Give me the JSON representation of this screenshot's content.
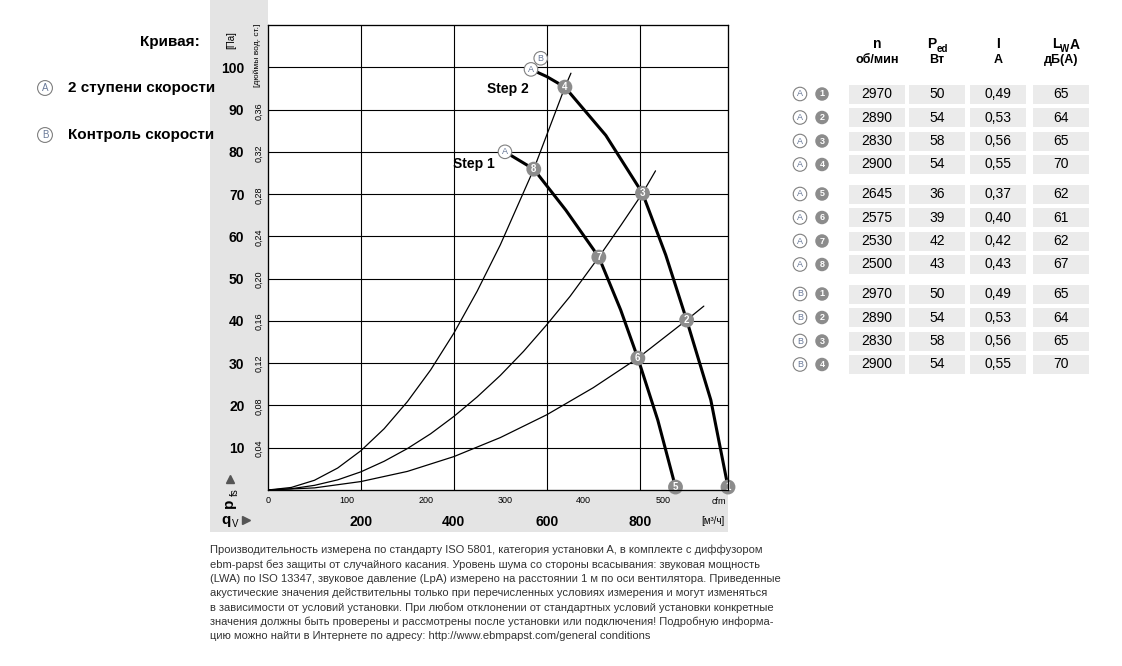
{
  "chart_data": {
    "type": "line",
    "series": [
      {
        "name": "Step 2",
        "type": "fan",
        "color": "#000000",
        "speed_marks": [
          "A",
          "B"
        ],
        "x": [
          566,
          600,
          639,
          727,
          806,
          856,
          901,
          953,
          990
        ],
        "values": [
          99.5,
          97.8,
          95.3,
          83.9,
          70.2,
          55.6,
          40.2,
          21.3,
          0.7
        ],
        "points": [
          {
            "label": "4",
            "x": 639,
            "y": 95.3
          },
          {
            "label": "3",
            "x": 806,
            "y": 70.2
          },
          {
            "label": "2",
            "x": 901,
            "y": 40.2
          },
          {
            "label": "1",
            "x": 990,
            "y": 0.7
          }
        ]
      },
      {
        "name": "Step 1",
        "type": "fan",
        "color": "#000000",
        "speed_marks": [
          "A"
        ],
        "x": [
          510,
          572,
          641,
          712,
          759,
          796,
          839,
          877
        ],
        "values": [
          80.0,
          75.9,
          66.2,
          55.1,
          42.6,
          31.2,
          16.5,
          0.7
        ],
        "points": [
          {
            "label": "8",
            "x": 572,
            "y": 75.9
          },
          {
            "label": "7",
            "x": 712,
            "y": 55.1
          },
          {
            "label": "6",
            "x": 796,
            "y": 31.2
          },
          {
            "label": "5",
            "x": 877,
            "y": 0.7
          }
        ]
      },
      {
        "type": "system",
        "color": "#000000",
        "x": [
          0,
          50,
          100,
          150,
          200,
          250,
          300,
          350,
          400,
          450,
          500,
          572,
          639,
          652
        ],
        "values": [
          0,
          0.6,
          2.3,
          5.2,
          9.3,
          14.5,
          20.9,
          28.4,
          37.1,
          47.0,
          58.0,
          75.9,
          95.3,
          98.6
        ]
      },
      {
        "type": "system",
        "color": "#000000",
        "x": [
          0,
          50,
          100,
          150,
          200,
          250,
          300,
          350,
          400,
          450,
          500,
          550,
          600,
          650,
          712,
          760,
          806,
          834
        ],
        "values": [
          0,
          0.3,
          1.1,
          2.4,
          4.3,
          6.8,
          9.8,
          13.3,
          17.4,
          22.0,
          27.1,
          32.8,
          39.1,
          45.8,
          55.1,
          62.7,
          70.2,
          75.5
        ]
      },
      {
        "type": "system",
        "color": "#000000",
        "x": [
          0,
          100,
          200,
          300,
          400,
          500,
          600,
          700,
          796,
          901,
          938
        ],
        "values": [
          0,
          0.5,
          2.0,
          4.4,
          7.9,
          12.4,
          17.8,
          24.2,
          31.2,
          40.2,
          43.5
        ]
      }
    ],
    "xlim": [
      0,
      990
    ],
    "xticks": [
      200,
      400,
      600,
      800
    ],
    "ylim": [
      0,
      110
    ],
    "yticks": [
      10,
      20,
      30,
      40,
      50,
      60,
      70,
      80,
      90,
      100
    ],
    "x2lim": [
      0,
      582.7
    ],
    "x2ticks": [
      0,
      100,
      200,
      300,
      400,
      500
    ],
    "y2lim": [
      0,
      0.4416
    ],
    "y2ticks": [
      {
        "value": 0.04,
        "label": "0,04"
      },
      {
        "value": 0.08,
        "label": "0,08"
      },
      {
        "value": 0.12,
        "label": "0,12"
      },
      {
        "value": 0.16,
        "label": "0,16"
      },
      {
        "value": 0.2,
        "label": "0,20"
      },
      {
        "value": 0.24,
        "label": "0,24"
      },
      {
        "value": 0.28,
        "label": "0,28"
      },
      {
        "value": 0.32,
        "label": "0,32"
      },
      {
        "value": 0.36,
        "label": "0,36"
      }
    ],
    "x_label": {
      "symbol": "q",
      "sub": "V",
      "unit": "[м³/ч]"
    },
    "x2_unit": "cfm",
    "y_label": {
      "symbol": "p",
      "sub": "fs",
      "unit": "[Па]"
    },
    "y2_unit": "[дюймы вод. ст.]",
    "grid": true
  },
  "curve_key": {
    "title": "Кривая:",
    "items": [
      {
        "mark": "A",
        "text": "2 ступени скорости"
      },
      {
        "mark": "B",
        "text": "Контроль скорости"
      }
    ]
  },
  "table": {
    "columns": [
      {
        "parts": [
          {
            "text": "n"
          }
        ],
        "unit": "об/мин"
      },
      {
        "parts": [
          {
            "text": "P"
          },
          {
            "text": "ed",
            "sub": true
          }
        ],
        "unit": "Вт"
      },
      {
        "parts": [
          {
            "text": "I"
          }
        ],
        "unit": "A"
      },
      {
        "parts": [
          {
            "text": "L"
          },
          {
            "text": "W",
            "sub": true
          },
          {
            "text": "A"
          }
        ],
        "unit": "дБ(A)"
      }
    ],
    "groups": [
      [
        [
          "A",
          "1",
          "2970",
          "50",
          "0,49",
          "65"
        ],
        [
          "A",
          "2",
          "2890",
          "54",
          "0,53",
          "64"
        ],
        [
          "A",
          "3",
          "2830",
          "58",
          "0,56",
          "65"
        ],
        [
          "A",
          "4",
          "2900",
          "54",
          "0,55",
          "70"
        ]
      ],
      [
        [
          "A",
          "5",
          "2645",
          "36",
          "0,37",
          "62"
        ],
        [
          "A",
          "6",
          "2575",
          "39",
          "0,40",
          "61"
        ],
        [
          "A",
          "7",
          "2530",
          "42",
          "0,42",
          "62"
        ],
        [
          "A",
          "8",
          "2500",
          "43",
          "0,43",
          "67"
        ]
      ],
      [
        [
          "B",
          "1",
          "2970",
          "50",
          "0,49",
          "65"
        ],
        [
          "B",
          "2",
          "2890",
          "54",
          "0,53",
          "64"
        ],
        [
          "B",
          "3",
          "2830",
          "58",
          "0,56",
          "65"
        ],
        [
          "B",
          "4",
          "2900",
          "54",
          "0,55",
          "70"
        ]
      ]
    ]
  },
  "footnote": [
    "Производительность измерена по стандарту ISO 5801, категория установки A, в комплекте с диффузором",
    "ebm-papst без защиты от случайного касания. Уровень шума со стороны всасывания: звуковая мощность",
    "(LWA) по ISO 13347, звуковое давление (LpA) измерено на расстоянии 1 м по оси вентилятора. Приведенные",
    "акустические значения действительны только при перечисленных условиях измерения и могут изменяться",
    "в зависимости от условий установки. При любом отклонении от стандартных условий установки конкретные",
    "значения должны быть проверены и рассмотрены после установки или подключения! Подробную информа-",
    "цию можно найти в Интернете по адресу: http://www.ebmpapst.com/general conditions"
  ]
}
